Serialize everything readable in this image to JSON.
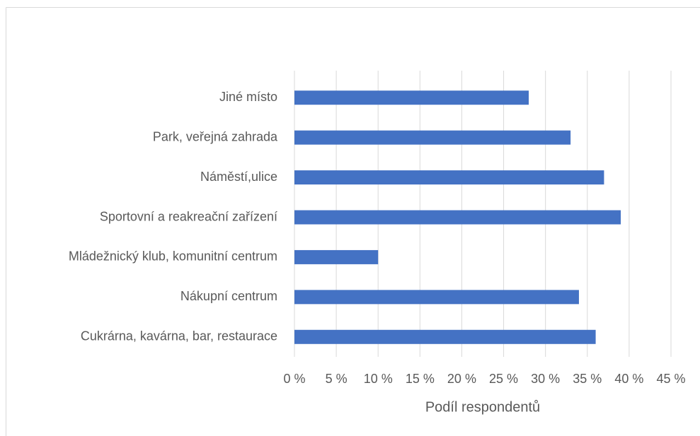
{
  "chart_data": {
    "type": "bar",
    "orientation": "horizontal",
    "x_label": "Podíl respondentů",
    "categories": [
      "Jiné místo",
      "Park, veřejná zahrada",
      "Náměstí,ulice",
      "Sportovní a reakreační zařízení",
      "Mládežnický klub, komunitní centrum",
      "Nákupní centrum",
      "Cukrárna, kavárna, bar, restaurace"
    ],
    "values": [
      28,
      33,
      37,
      39,
      10,
      34,
      36
    ],
    "color": "#4472c4",
    "xlim": [
      0,
      45
    ],
    "xticks": [
      {
        "value": 0,
        "label": "0 %"
      },
      {
        "value": 5,
        "label": "5 %"
      },
      {
        "value": 10,
        "label": "10 %"
      },
      {
        "value": 15,
        "label": "15 %"
      },
      {
        "value": 20,
        "label": "20 %"
      },
      {
        "value": 25,
        "label": "25 %"
      },
      {
        "value": 30,
        "label": "30 %"
      },
      {
        "value": 35,
        "label": "35 %"
      },
      {
        "value": 40,
        "label": "40 %"
      },
      {
        "value": 45,
        "label": "45 %"
      }
    ],
    "grid": true
  }
}
